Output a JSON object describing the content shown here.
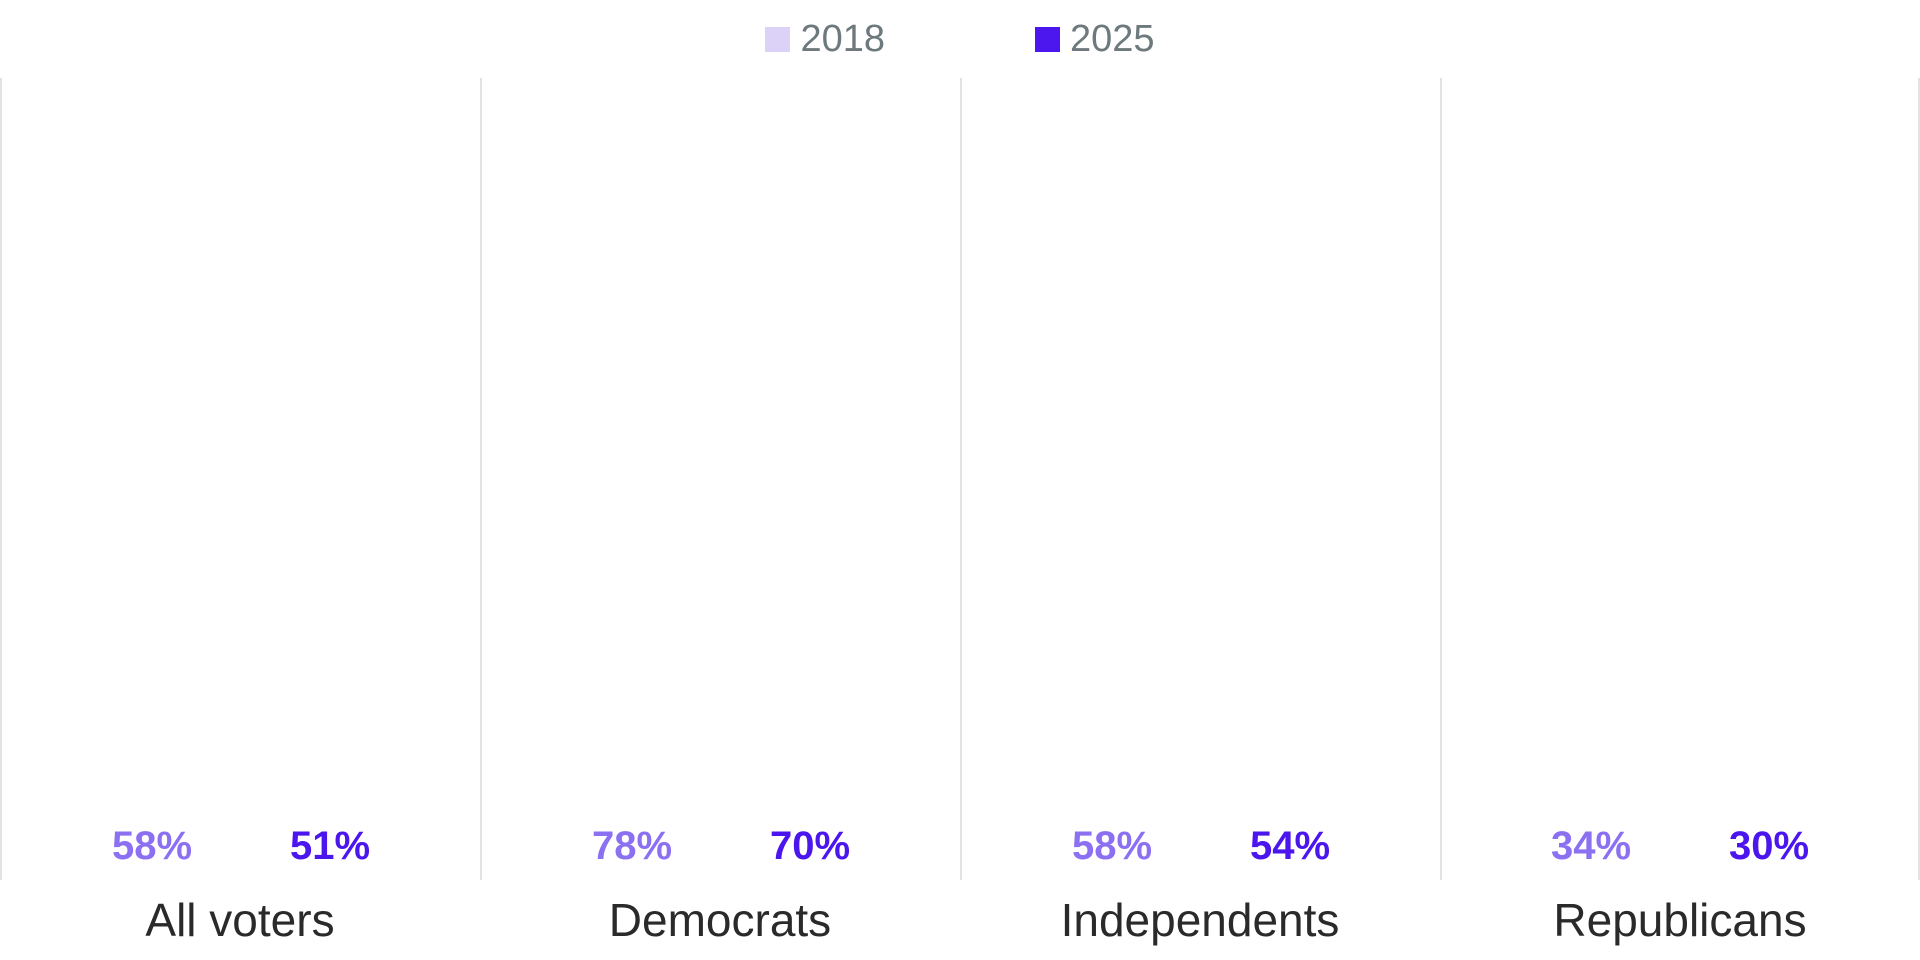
{
  "chart_data": {
    "type": "bar",
    "title": "",
    "categories": [
      "All voters",
      "Democrats",
      "Independents",
      "Republicans"
    ],
    "series": [
      {
        "name": "2018",
        "color": "#dcd1f7",
        "label_color": "#8c70f2",
        "values": [
          58,
          78,
          58,
          34
        ]
      },
      {
        "name": "2025",
        "color": "#4c16ee",
        "label_color": "#4b16ee",
        "values": [
          51,
          70,
          54,
          30
        ]
      }
    ],
    "value_suffix": "%",
    "xlabel": "",
    "ylabel": "",
    "ylim": [
      0,
      90
    ],
    "grid": "vertical panel dividers only",
    "legend_position": "top-center",
    "data_labels": "above each bar",
    "colors": {
      "background": "#ffffff",
      "divider": "#e3e3e3",
      "legend_text": "#6d797d",
      "category_text": "#2a2a2a"
    }
  }
}
